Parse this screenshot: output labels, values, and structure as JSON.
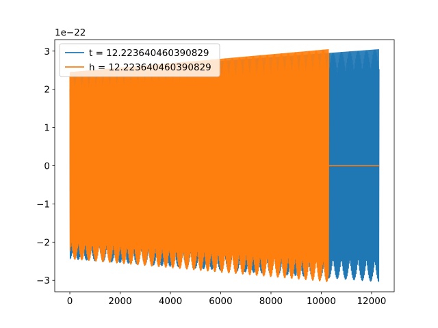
{
  "chart_data": {
    "type": "line",
    "title": "",
    "xlabel": "",
    "ylabel": "",
    "offset_text": "1e−22",
    "xlim": [
      -600,
      12900
    ],
    "ylim": [
      -3.3,
      3.3
    ],
    "x_ticks": [
      0,
      2000,
      4000,
      6000,
      8000,
      10000,
      12000
    ],
    "y_ticks": [
      -3,
      -2,
      -1,
      0,
      1,
      2,
      3
    ],
    "x_tick_labels": [
      "0",
      "2000",
      "4000",
      "6000",
      "8000",
      "10000",
      "12000"
    ],
    "y_tick_labels": [
      "−3",
      "−2",
      "−1",
      "0",
      "1",
      "2",
      "3"
    ],
    "legend_position": "upper left",
    "grid": false,
    "series": [
      {
        "name": "t = 12.223640460390829",
        "color": "#1f77b4",
        "x_start": 0,
        "x_end": 12300,
        "oscillating": true,
        "envelope_x": [
          0,
          12300
        ],
        "envelope_amplitude": [
          2.45,
          3.05
        ],
        "x_fill_end": 12300,
        "x_zero_tail_end": 12300
      },
      {
        "name": "h = 12.223640460390829",
        "color": "#ff7f0e",
        "x_start": 0,
        "x_end": 12300,
        "oscillating": true,
        "envelope_x": [
          0,
          10300
        ],
        "envelope_amplitude": [
          2.45,
          3.05
        ],
        "x_fill_end": 10300,
        "x_zero_tail_end": 12300
      }
    ]
  }
}
